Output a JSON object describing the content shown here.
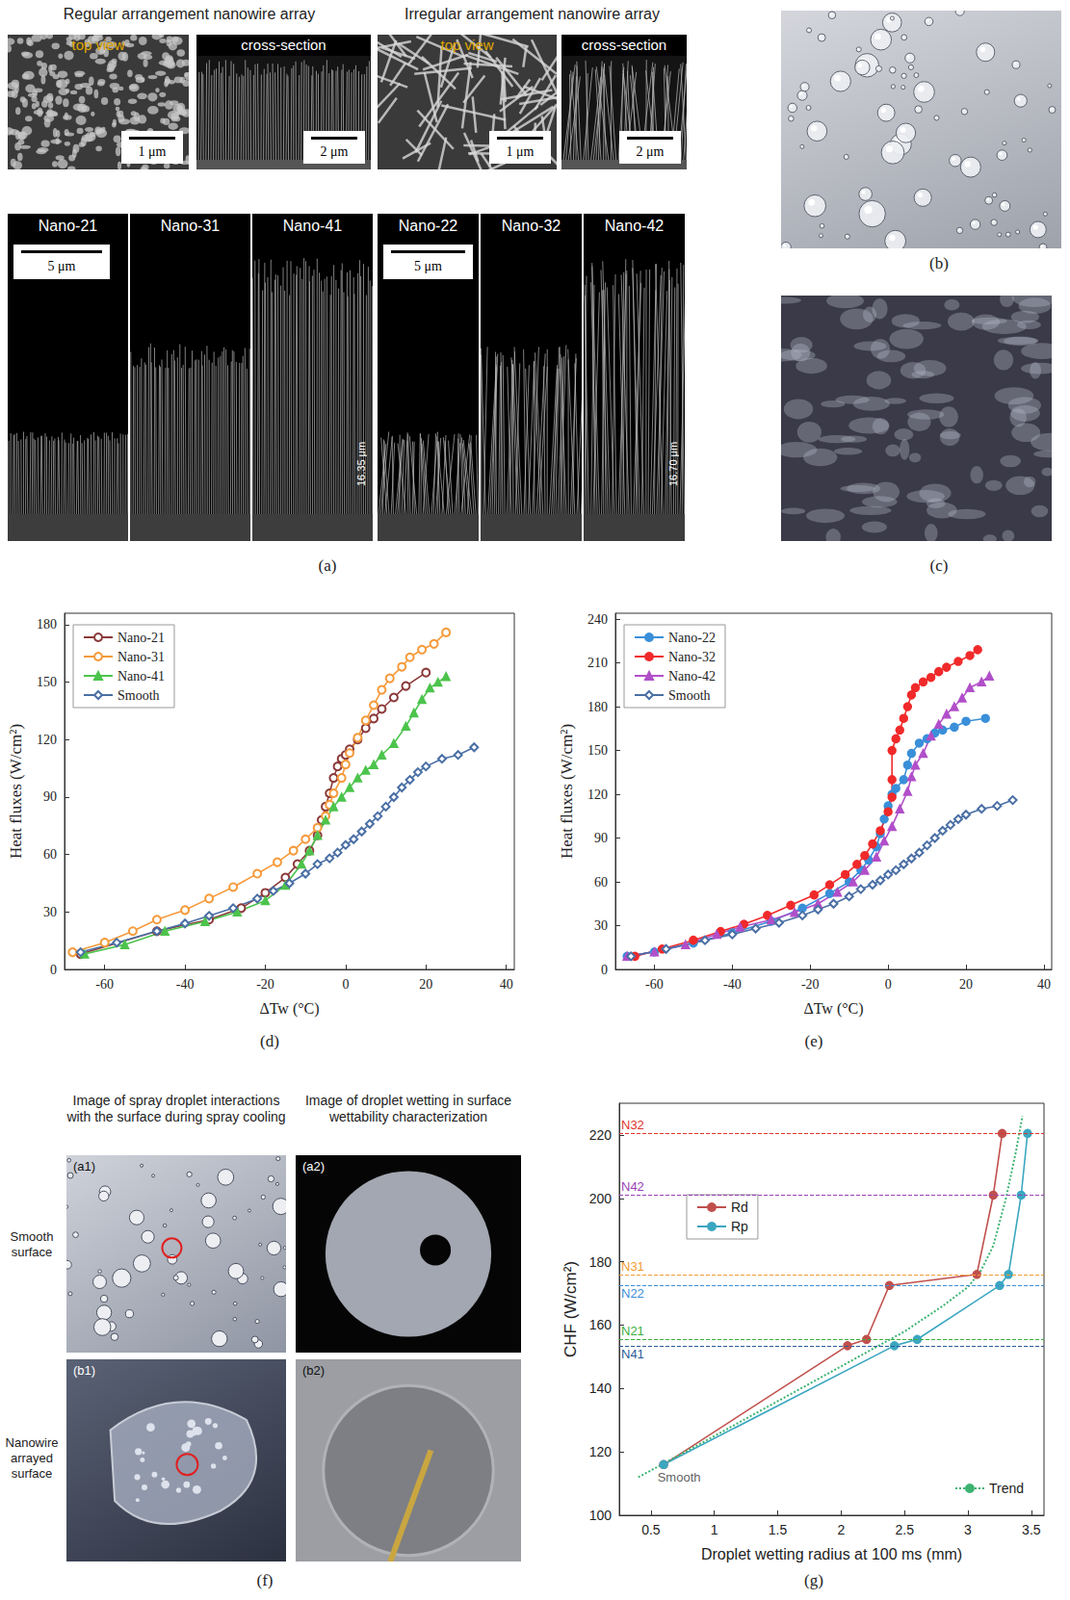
{
  "panels": {
    "a": {
      "letter": "(a)",
      "groups": [
        {
          "title": "Regular arrangement nanowire array",
          "views": [
            {
              "label": "top view",
              "scale_bar": "1 μm"
            },
            {
              "label": "cross-section",
              "scale_bar": "2 μm"
            }
          ],
          "scale_bar": "5 μm",
          "samples": [
            {
              "name": "Nano-21"
            },
            {
              "name": "Nano-31"
            },
            {
              "name": "Nano-41",
              "height_label": "16.35 μm"
            }
          ]
        },
        {
          "title": "Irregular arrangement nanowire array",
          "views": [
            {
              "label": "top view",
              "scale_bar": "1 μm"
            },
            {
              "label": "cross-section",
              "scale_bar": "2 μm"
            }
          ],
          "scale_bar": "5 μm",
          "samples": [
            {
              "name": "Nano-22"
            },
            {
              "name": "Nano-32"
            },
            {
              "name": "Nano-42",
              "height_label": "16.70 μm"
            }
          ]
        }
      ]
    },
    "b": {
      "letter": "(b)"
    },
    "c": {
      "letter": "(c)"
    },
    "f": {
      "letter": "(f)",
      "column_heads": [
        "Image of spray droplet interactions with the surface during spray cooling",
        "Image of droplet wetting in surface wettability characterization"
      ],
      "rows": [
        {
          "label": "Smooth surface",
          "images": [
            "(a1)",
            "(a2)"
          ]
        },
        {
          "label": "Nanowire arrayed surface",
          "images": [
            "(b1)",
            "(b2)"
          ]
        }
      ]
    }
  },
  "chart_data": [
    {
      "type": "line",
      "title": "(d)",
      "x_label": "ΔTw (°C)",
      "y_label": "Heat fluxes (W/cm²)",
      "xlim": [
        -70,
        42
      ],
      "xticks": [
        -60,
        -40,
        -20,
        0,
        20,
        40
      ],
      "ylim": [
        0,
        186
      ],
      "yticks": [
        0,
        30,
        60,
        90,
        120,
        150,
        180
      ],
      "grid": false,
      "legend": "upper left",
      "series": [
        {
          "name": "Nano-21",
          "color": "#8b3a3a",
          "marker": "circle-open",
          "x": [
            -66,
            -47,
            -34,
            -26,
            -20,
            -15,
            -12,
            -9,
            -7,
            -6,
            -5,
            -4,
            -3,
            -2,
            -1,
            0,
            1,
            3,
            5,
            7,
            9,
            12,
            15,
            20
          ],
          "values": [
            8,
            20,
            26,
            32,
            40,
            48,
            55,
            62,
            70,
            78,
            85,
            92,
            100,
            106,
            110,
            112,
            115,
            120,
            126,
            131,
            136,
            142,
            148,
            155
          ]
        },
        {
          "name": "Nano-31",
          "color": "#f59a3b",
          "marker": "circle-open",
          "x": [
            -68,
            -60,
            -53,
            -47,
            -40,
            -34,
            -28,
            -22,
            -17,
            -13,
            -10,
            -7,
            -5,
            -4,
            -3,
            -1,
            0,
            1,
            3,
            5,
            7,
            9,
            11,
            14,
            16,
            19,
            22,
            25
          ],
          "values": [
            9,
            14,
            20,
            26,
            31,
            37,
            43,
            50,
            56,
            62,
            68,
            74,
            80,
            86,
            92,
            100,
            107,
            113,
            121,
            130,
            138,
            146,
            152,
            158,
            163,
            167,
            170,
            176
          ]
        },
        {
          "name": "Nano-41",
          "color": "#4cc44c",
          "marker": "triangle",
          "x": [
            -65,
            -55,
            -45,
            -35,
            -27,
            -20,
            -15,
            -11,
            -9,
            -7,
            -5,
            -3,
            -1,
            1,
            3,
            5,
            7,
            9,
            12,
            15,
            17,
            19,
            21,
            23,
            25
          ],
          "values": [
            8,
            13,
            20,
            25,
            30,
            36,
            44,
            55,
            62,
            70,
            78,
            85,
            90,
            95,
            100,
            104,
            107,
            112,
            118,
            127,
            134,
            141,
            147,
            150,
            153
          ]
        },
        {
          "name": "Smooth",
          "color": "#4a6fa5",
          "marker": "diamond-open",
          "x": [
            -66,
            -57,
            -47,
            -40,
            -34,
            -28,
            -22,
            -18,
            -14,
            -10,
            -7,
            -4,
            -2,
            0,
            2,
            4,
            6,
            8,
            10,
            12,
            14,
            16,
            18,
            20,
            24,
            28,
            32
          ],
          "values": [
            9,
            14,
            20,
            24,
            28,
            32,
            37,
            41,
            45,
            50,
            55,
            58,
            61,
            65,
            68,
            72,
            76,
            80,
            85,
            90,
            95,
            99,
            103,
            106,
            110,
            112,
            116
          ]
        }
      ]
    },
    {
      "type": "line",
      "title": "(e)",
      "x_label": "ΔTw (°C)",
      "y_label": "Heat fluxes (W/cm²)",
      "xlim": [
        -70,
        42
      ],
      "xticks": [
        -60,
        -40,
        -20,
        0,
        20,
        40
      ],
      "ylim": [
        0,
        244
      ],
      "yticks": [
        0,
        30,
        60,
        90,
        120,
        150,
        180,
        210,
        240
      ],
      "grid": false,
      "legend": "upper left",
      "series": [
        {
          "name": "Nano-22",
          "color": "#3a8fd9",
          "marker": "circle",
          "x": [
            -67,
            -60,
            -50,
            -40,
            -30,
            -22,
            -15,
            -10,
            -7,
            -5,
            -3,
            -2,
            -1,
            0,
            1,
            2,
            4,
            5,
            6,
            8,
            10,
            12,
            14,
            17,
            20,
            25
          ],
          "values": [
            9,
            12,
            18,
            25,
            33,
            42,
            52,
            60,
            68,
            75,
            84,
            93,
            103,
            112,
            120,
            124,
            130,
            140,
            148,
            155,
            158,
            162,
            164,
            166,
            170,
            172
          ]
        },
        {
          "name": "Nano-32",
          "color": "#f02a2a",
          "marker": "circle",
          "x": [
            -65,
            -58,
            -50,
            -43,
            -37,
            -31,
            -25,
            -19,
            -15,
            -11,
            -8,
            -6,
            -4,
            -2,
            0,
            1,
            1,
            1,
            2,
            3,
            4,
            5,
            6,
            7,
            9,
            11,
            13,
            15,
            18,
            21,
            23
          ],
          "values": [
            9,
            14,
            20,
            26,
            31,
            37,
            44,
            51,
            58,
            65,
            72,
            78,
            86,
            95,
            108,
            118,
            130,
            150,
            158,
            164,
            172,
            180,
            188,
            193,
            197,
            200,
            204,
            207,
            211,
            215,
            219
          ]
        },
        {
          "name": "Nano-42",
          "color": "#b14fc9",
          "marker": "triangle",
          "x": [
            -67,
            -60,
            -52,
            -44,
            -38,
            -30,
            -24,
            -18,
            -13,
            -9,
            -6,
            -3,
            -1,
            1,
            3,
            5,
            6,
            7,
            9,
            11,
            13,
            15,
            17,
            19,
            21,
            24,
            26
          ],
          "values": [
            9,
            12,
            17,
            24,
            29,
            34,
            39,
            45,
            53,
            60,
            68,
            77,
            88,
            98,
            110,
            122,
            132,
            140,
            148,
            160,
            168,
            175,
            180,
            186,
            193,
            197,
            201
          ]
        },
        {
          "name": "Smooth",
          "color": "#4a6fa5",
          "marker": "diamond-open",
          "x": [
            -66,
            -57,
            -47,
            -40,
            -34,
            -28,
            -22,
            -18,
            -14,
            -10,
            -7,
            -4,
            -2,
            0,
            2,
            4,
            6,
            8,
            10,
            12,
            14,
            16,
            18,
            20,
            24,
            28,
            32
          ],
          "values": [
            9,
            14,
            20,
            24,
            28,
            32,
            37,
            41,
            45,
            50,
            55,
            58,
            61,
            65,
            68,
            72,
            76,
            80,
            85,
            90,
            95,
            99,
            103,
            106,
            110,
            112,
            116
          ]
        }
      ]
    },
    {
      "type": "line",
      "title": "(g)",
      "x_label": "Droplet wetting radius at 100 ms (mm)",
      "y_label": "CHF (W/cm²)",
      "xlim": [
        0.25,
        3.6
      ],
      "xticks": [
        0.5,
        1.0,
        1.5,
        2.0,
        2.5,
        3.0,
        3.5
      ],
      "ylim": [
        100,
        230
      ],
      "yticks": [
        100,
        120,
        140,
        160,
        180,
        200,
        220
      ],
      "grid": false,
      "legend": "upper left",
      "series": [
        {
          "name": "Rd",
          "color": "#c0504d",
          "marker": "circle",
          "line_style": "solid",
          "x": [
            0.6,
            2.05,
            2.2,
            2.38,
            3.07,
            3.2,
            3.27
          ],
          "values": [
            116,
            153.5,
            155.5,
            172.5,
            176,
            201,
            220.5
          ]
        },
        {
          "name": "Rp",
          "color": "#3ba6c0",
          "marker": "circle",
          "line_style": "solid",
          "x": [
            0.6,
            2.42,
            2.6,
            3.25,
            3.32,
            3.42,
            3.47
          ],
          "values": [
            116,
            153.5,
            155.5,
            172.5,
            176,
            201,
            220.5
          ]
        },
        {
          "name": "Trend",
          "color": "#3cb371",
          "marker": "none",
          "line_style": "dotted",
          "x": [
            0.4,
            1.0,
            1.5,
            2.0,
            2.5,
            2.8,
            3.0,
            3.1,
            3.2,
            3.3,
            3.38,
            3.43
          ],
          "values": [
            112,
            125,
            136,
            147,
            158,
            166,
            172,
            177,
            185,
            200,
            215,
            226
          ]
        }
      ],
      "reference_lines": [
        {
          "label": "N32",
          "value": 220.5,
          "color": "#e0342c"
        },
        {
          "label": "N42",
          "value": 201,
          "color": "#9b3fb5"
        },
        {
          "label": "N31",
          "value": 176,
          "color": "#f39c34"
        },
        {
          "label": "N22",
          "value": 172.5,
          "color": "#3a8fd9"
        },
        {
          "label": "N21",
          "value": 155.5,
          "color": "#3cae3c"
        },
        {
          "label": "N41",
          "value": 153.5,
          "color": "#2a5a9a"
        }
      ],
      "annotations": [
        {
          "text": "Smooth",
          "x": 0.6,
          "y": 116
        }
      ]
    }
  ]
}
